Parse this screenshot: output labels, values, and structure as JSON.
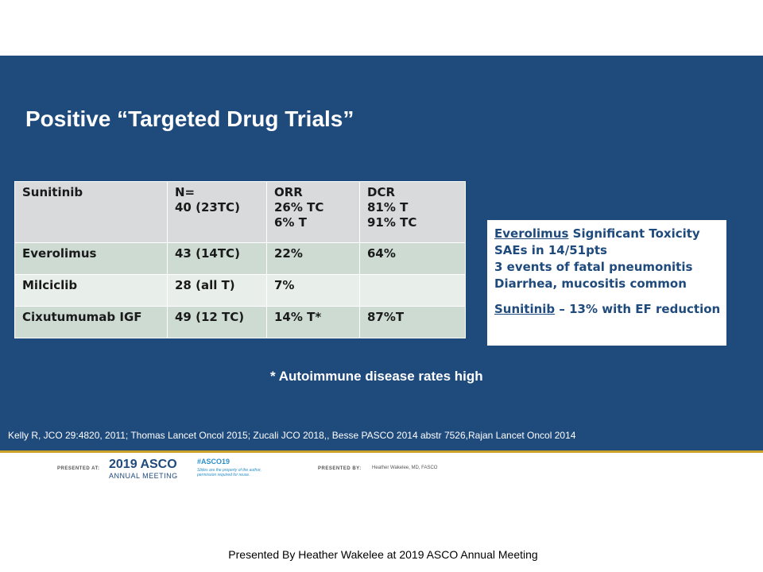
{
  "slide": {
    "title": "Positive “Targeted Drug Trials”",
    "table": {
      "rows": [
        [
          [
            "Sunitinib"
          ],
          [
            "N=",
            "40 (23TC)"
          ],
          [
            "ORR",
            "26% TC",
            "6% T"
          ],
          [
            "DCR",
            "81% T",
            "91% TC"
          ]
        ],
        [
          [
            "Everolimus"
          ],
          [
            "43 (14TC)"
          ],
          [
            "22%"
          ],
          [
            "64%"
          ]
        ],
        [
          [
            "Milciclib"
          ],
          [
            "28 (all T)"
          ],
          [
            "7%"
          ],
          [
            ""
          ]
        ],
        [
          [
            "Cixutumumab IGF"
          ],
          [
            "49 (12 TC)"
          ],
          [
            "14% T*"
          ],
          [
            "87%T"
          ]
        ]
      ]
    },
    "toxicity_box": {
      "line1_drug": "Everolimus",
      "line1_rest": " Significant Toxicity",
      "line2": "SAEs in 14/51pts",
      "line3": "3 events of fatal pneumonitis",
      "line4": "Diarrhea, mucositis common",
      "line5_drug": "Sunitinib",
      "line5_rest": " – 13% with EF reduction"
    },
    "footnote": "* Autoimmune disease rates high",
    "references": "Kelly R, JCO 29:4820, 2011; Thomas  Lancet Oncol 2015; Zucali JCO 2018,, Besse PASCO 2014 abstr 7526,Rajan Lancet Oncol 2014"
  },
  "footer": {
    "presented_at_label": "PRESENTED AT:",
    "asco_year": "2019 ASCO",
    "asco_sub": "ANNUAL MEETING",
    "hashtag": "#ASCO19",
    "rights_line1": "Slides are the property of the author,",
    "rights_line2": "permission required for reuse.",
    "presented_by_label": "PRESENTED BY:",
    "presenter": "Heather Wakelee, MD, FASCO"
  },
  "caption": "Presented By Heather Wakelee at 2019 ASCO Annual Meeting",
  "colors": {
    "band": "#1f4a7c",
    "gold": "#c9a227",
    "table_header": "#d9dadb",
    "table_row_green": "#cddbd3",
    "table_row_light": "#e8eeea"
  }
}
